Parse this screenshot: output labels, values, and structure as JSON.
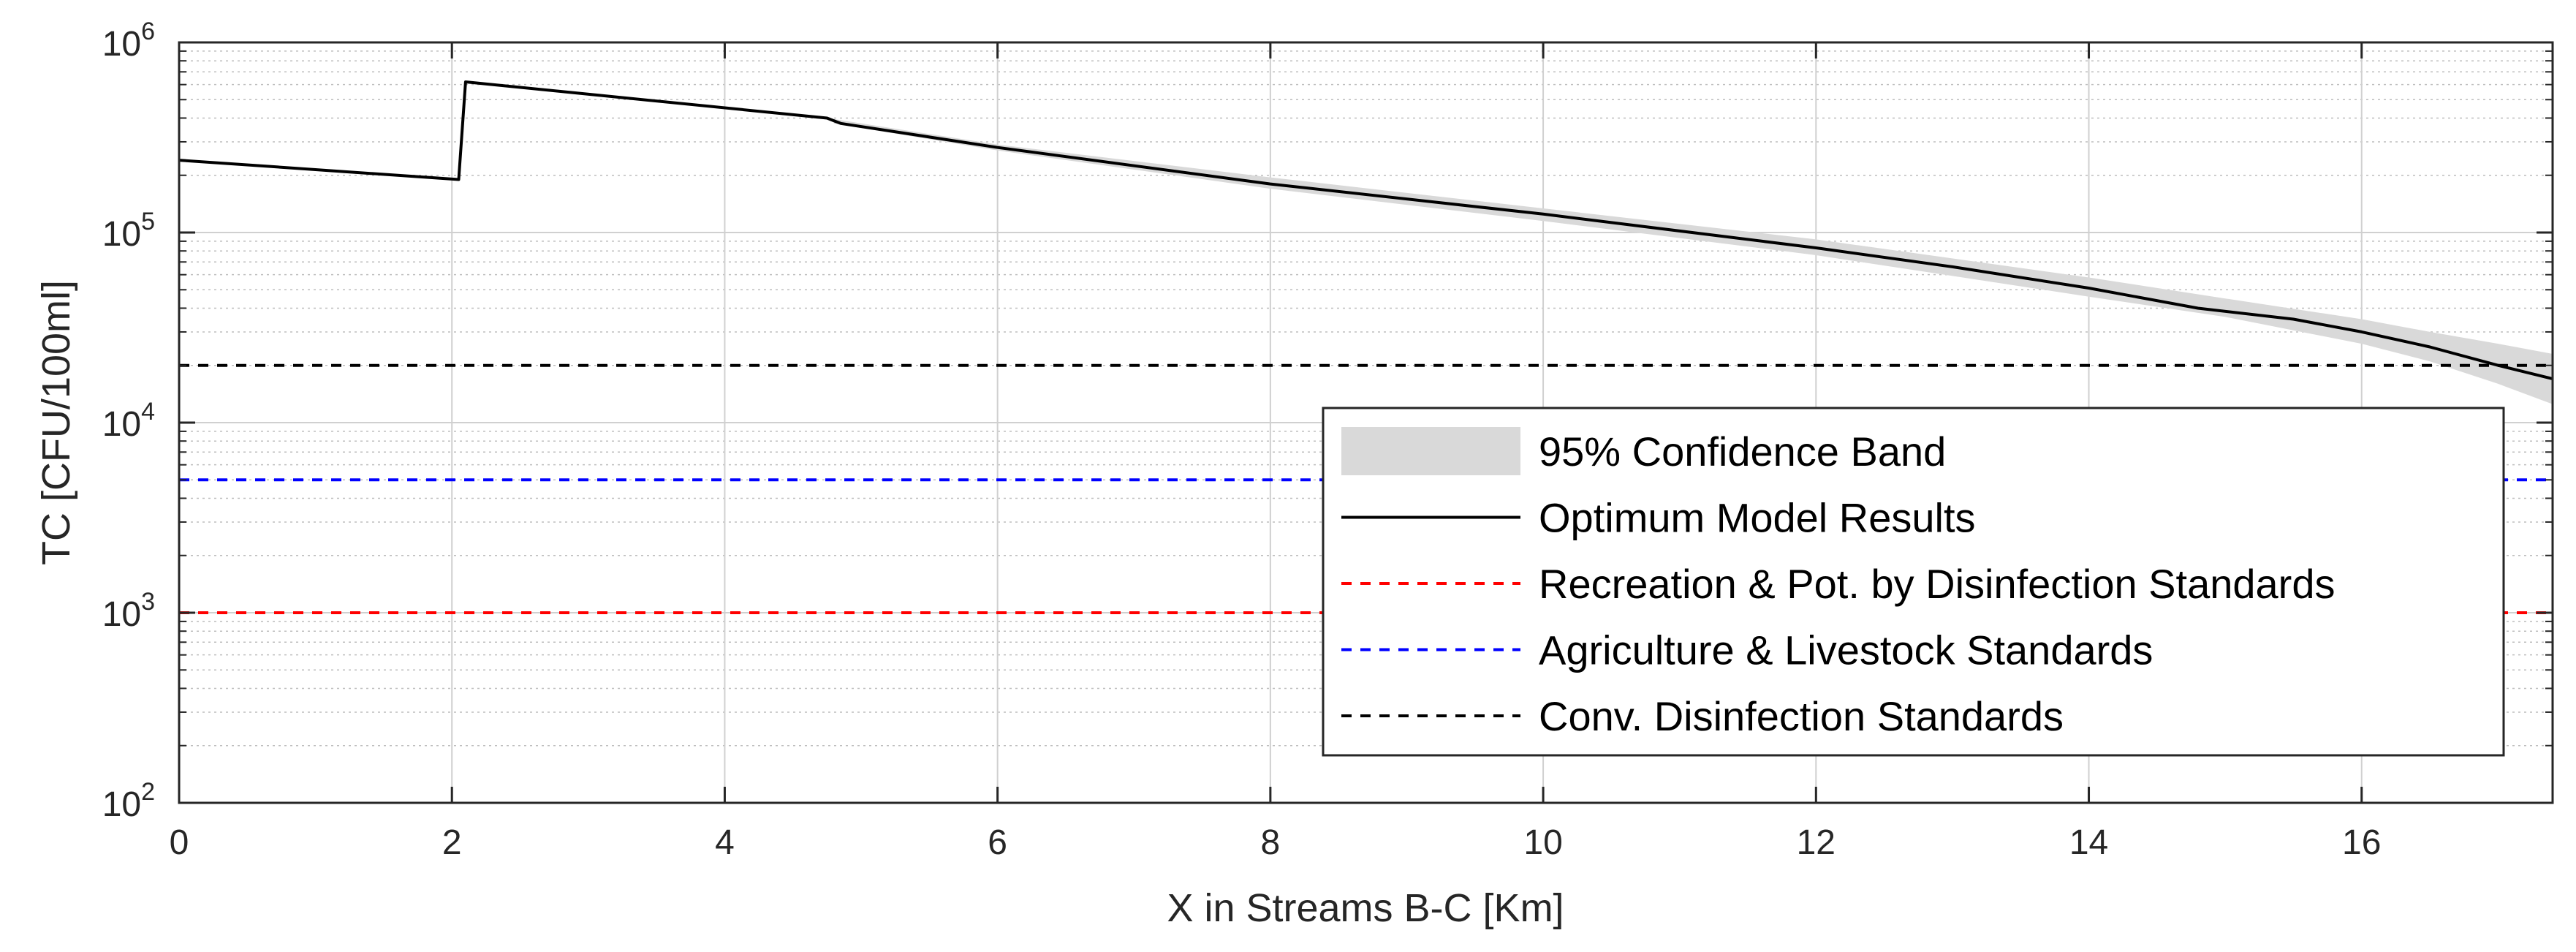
{
  "chart_data": {
    "type": "line",
    "xlabel": "X in Streams B-C [Km]",
    "ylabel": "TC [CFU/100ml]",
    "xlim": [
      0,
      17.4
    ],
    "ylim": [
      100,
      1000000
    ],
    "y_scale": "log",
    "grid": true,
    "legend_position": "bottom-right",
    "x_ticks": [
      "0",
      "2",
      "4",
      "6",
      "8",
      "10",
      "12",
      "14",
      "16"
    ],
    "y_ticks": [
      {
        "value": 100,
        "mantissa": "10",
        "exponent": "2"
      },
      {
        "value": 1000,
        "mantissa": "10",
        "exponent": "3"
      },
      {
        "value": 10000,
        "mantissa": "10",
        "exponent": "4"
      },
      {
        "value": 100000,
        "mantissa": "10",
        "exponent": "5"
      },
      {
        "value": 1000000,
        "mantissa": "10",
        "exponent": "6"
      }
    ],
    "series": [
      {
        "name": "95% Confidence Band",
        "kind": "band",
        "color": "#d9d9d9",
        "x": [
          4.8,
          6,
          8,
          10,
          12,
          14,
          15,
          16,
          16.5,
          17,
          17.4
        ],
        "lower": [
          375000,
          270000,
          170000,
          115000,
          76000,
          46000,
          36000,
          26000,
          21000,
          16000,
          12500
        ],
        "upper": [
          395000,
          290000,
          195000,
          134000,
          92000,
          58000,
          45000,
          35000,
          30000,
          26000,
          23000
        ]
      },
      {
        "name": "Optimum Model Results",
        "kind": "line",
        "color": "#000000",
        "dash": "solid",
        "x": [
          0,
          2.05,
          2.1,
          4.75,
          4.85,
          6,
          8,
          10,
          12,
          13,
          14,
          14.8,
          15.5,
          16,
          16.5,
          17,
          17.4
        ],
        "y": [
          240000,
          190000,
          620000,
          400000,
          375000,
          280000,
          180000,
          125000,
          83000,
          66000,
          51000,
          40000,
          35000,
          30000,
          25000,
          20000,
          17000
        ]
      },
      {
        "name": "Recreation & Pot. by Disinfection Standards",
        "kind": "hline",
        "color": "#ff0000",
        "dash": "dashed",
        "y": 1000
      },
      {
        "name": "Agriculture & Livestock Standards",
        "kind": "hline",
        "color": "#0000ff",
        "dash": "dashed",
        "y": 5000
      },
      {
        "name": "Conv. Disinfection Standards",
        "kind": "hline",
        "color": "#000000",
        "dash": "dashed",
        "y": 20000
      }
    ]
  }
}
